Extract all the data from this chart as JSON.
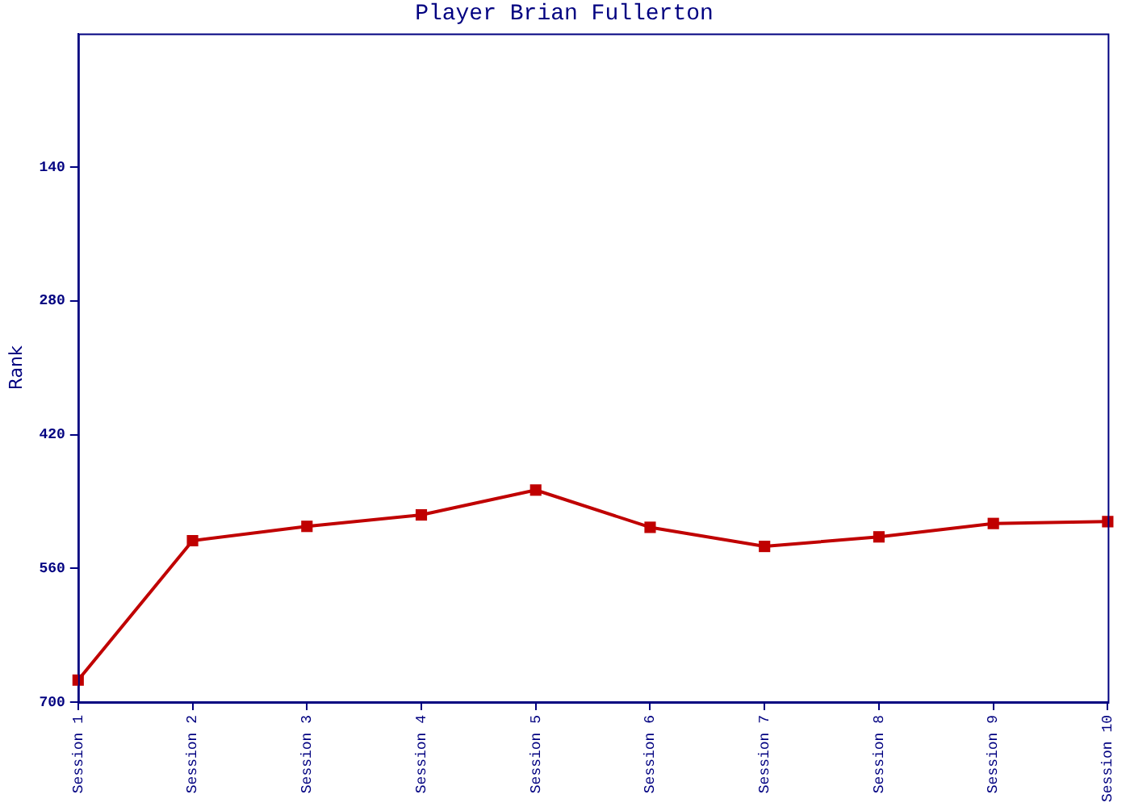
{
  "chart_data": {
    "type": "line",
    "title": "Player Brian Fullerton",
    "ylabel": "Rank",
    "categories": [
      "Session 1",
      "Session 2",
      "Session 3",
      "Session 4",
      "Session 5",
      "Session 6",
      "Session 7",
      "Session 8",
      "Session 9",
      "Session 10"
    ],
    "series": [
      {
        "color": "#c00000",
        "values": [
          677,
          531,
          516,
          504,
          478,
          517,
          537,
          527,
          513,
          511
        ]
      }
    ],
    "ylim": [
      700,
      0
    ],
    "yticks": [
      140,
      280,
      420,
      560,
      700
    ],
    "grid": false,
    "legend": false,
    "marker": "square",
    "line_style": "solid"
  }
}
